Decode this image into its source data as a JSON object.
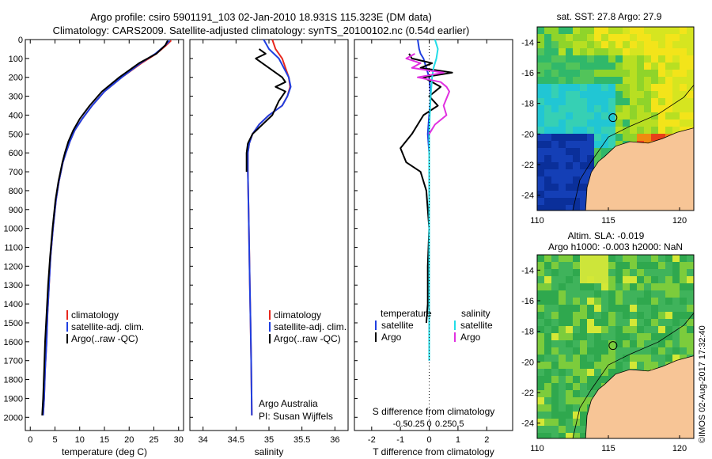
{
  "header": {
    "line1": "Argo profile: csiro 5901191_103 02-Jan-2010 18.931S 115.323E (DM data)",
    "line2": "Climatology: CARS2009. Satellite-adjusted climatology: synTS_20100102.nc (0.54d earlier)"
  },
  "credit": "©IMOS 02-Aug-2017 17:32:40",
  "colors": {
    "climatology": "#e8281e",
    "satellite": "#1f3fe0",
    "argo": "#000000",
    "salinity_satellite": "#22dde8",
    "salinity_argo": "#e030e0",
    "land": "#f7c596"
  },
  "chart_data": [
    {
      "id": "temperature",
      "type": "line",
      "xlabel": "temperature (deg C)",
      "xlim": [
        -1,
        31
      ],
      "ylim": [
        2070,
        0
      ],
      "xticks": [
        "0",
        "5",
        "10",
        "15",
        "20",
        "25",
        "30"
      ],
      "yticks": [
        "0",
        "100",
        "200",
        "300",
        "400",
        "500",
        "600",
        "700",
        "800",
        "900",
        "1000",
        "1100",
        "1200",
        "1300",
        "1400",
        "1500",
        "1600",
        "1700",
        "1800",
        "1900",
        "2000"
      ],
      "legend": [
        "climatology",
        "satellite-adj. clim.",
        "Argo(..raw -QC)"
      ],
      "series": [
        {
          "name": "climatology",
          "x": [
            28.5,
            27.5,
            25.5,
            22.5,
            18.5,
            15,
            12.5,
            10.5,
            9,
            8,
            7.2,
            6.6,
            5.8,
            5.2,
            4.6,
            4.1,
            3.8,
            3.5,
            3.3,
            3.0,
            2.8,
            2.6
          ],
          "y": [
            5,
            30,
            75,
            125,
            200,
            275,
            350,
            420,
            480,
            540,
            600,
            650,
            750,
            850,
            1000,
            1150,
            1300,
            1450,
            1600,
            1750,
            1900,
            1990
          ]
        },
        {
          "name": "satellite-adj. clim.",
          "x": [
            28.2,
            27.3,
            25.3,
            22.3,
            18.5,
            15,
            12.5,
            10.5,
            9,
            8,
            7.2,
            6.6,
            5.8,
            5.2,
            4.6,
            4.1,
            3.8,
            3.5,
            3.3,
            3.0,
            2.8,
            2.6
          ],
          "y": [
            5,
            30,
            75,
            125,
            200,
            275,
            350,
            420,
            480,
            540,
            600,
            650,
            750,
            850,
            1000,
            1150,
            1300,
            1450,
            1600,
            1750,
            1900,
            1990
          ]
        },
        {
          "name": "Argo(..raw -QC)",
          "x": [
            27.8,
            27.3,
            25.5,
            22,
            18,
            14.5,
            12,
            10,
            8.7,
            7.7,
            7.0,
            6.5,
            5.7,
            5.1,
            4.5,
            4.0,
            3.6,
            3.3,
            3.0,
            2.8,
            2.6,
            2.4
          ],
          "y": [
            5,
            30,
            75,
            125,
            200,
            275,
            350,
            420,
            480,
            540,
            600,
            650,
            750,
            850,
            1000,
            1150,
            1300,
            1450,
            1600,
            1750,
            1900,
            1990
          ]
        }
      ],
      "annotations": []
    },
    {
      "id": "salinity",
      "type": "line",
      "xlabel": "salinity",
      "xlim": [
        33.8,
        36.2
      ],
      "ylim": [
        2070,
        0
      ],
      "xticks": [
        "34",
        "34.5",
        "35",
        "35.5",
        "36"
      ],
      "legend": [
        "climatology",
        "satellite-adj. clim.",
        "Argo(..raw -QC)"
      ],
      "series": [
        {
          "name": "climatology",
          "x": [
            35.05,
            35.1,
            35.2,
            35.3,
            35.32,
            35.28,
            35.2,
            35.0,
            34.85,
            34.75,
            34.7,
            34.68,
            34.68,
            34.69,
            34.7,
            34.71,
            34.72,
            34.73,
            34.74
          ],
          "y": [
            0,
            50,
            100,
            200,
            250,
            300,
            350,
            400,
            450,
            500,
            550,
            600,
            700,
            900,
            1100,
            1300,
            1500,
            1700,
            1990
          ]
        },
        {
          "name": "satellite-adj. clim.",
          "x": [
            34.92,
            35.0,
            35.15,
            35.3,
            35.33,
            35.28,
            35.2,
            35.0,
            34.85,
            34.75,
            34.7,
            34.68,
            34.68,
            34.69,
            34.7,
            34.71,
            34.72,
            34.73,
            34.74
          ],
          "y": [
            0,
            50,
            100,
            200,
            250,
            300,
            350,
            400,
            450,
            500,
            550,
            600,
            700,
            900,
            1100,
            1300,
            1500,
            1700,
            1990
          ]
        },
        {
          "name": "Argo(..raw -QC)",
          "x": [
            34.85,
            34.95,
            34.8,
            35.0,
            35.2,
            35.25,
            35.1,
            35.25,
            35.15,
            35.05,
            34.9,
            34.75,
            34.68,
            34.66,
            34.66,
            34.66
          ],
          "y": [
            50,
            75,
            100,
            150,
            200,
            225,
            250,
            275,
            325,
            400,
            450,
            500,
            550,
            600,
            650,
            700
          ]
        }
      ],
      "annotations": [
        "Argo Australia",
        "PI: Susan Wijffels"
      ]
    },
    {
      "id": "difference",
      "type": "line",
      "xlabel": "T difference from climatology",
      "xlabel2": "S difference from climatology",
      "xlim": [
        -2.6,
        2.9
      ],
      "ylim": [
        2070,
        0
      ],
      "xticks": [
        "-2",
        "-1",
        "0",
        "1",
        "2"
      ],
      "xticks_s": [
        "-0.5",
        "-0.25",
        "0",
        "0.25",
        "0.5"
      ],
      "legend_groups": {
        "temperature": "temperature",
        "salinity": "salinity"
      },
      "legend": [
        "satellite",
        "Argo",
        "satellite",
        "Argo"
      ],
      "series": [
        {
          "name": "temperature satellite",
          "x": [
            -0.4,
            -0.35,
            -0.3,
            -0.2,
            -0.1,
            0.0,
            0.05,
            0.0,
            -0.05,
            0.0,
            0.0,
            0.0,
            0.0,
            0.0,
            0.0
          ],
          "y": [
            0,
            50,
            75,
            100,
            150,
            200,
            300,
            400,
            500,
            600,
            800,
            1000,
            1200,
            1500,
            1700
          ]
        },
        {
          "name": "temperature Argo",
          "x": [
            -0.7,
            -0.6,
            0.1,
            -0.3,
            0.8,
            -0.2,
            0.4,
            0.0,
            0.3,
            -0.2,
            -0.4,
            -0.6,
            -1.0,
            -0.8,
            -0.3,
            -0.1,
            0.0,
            -0.05,
            -0.05,
            -0.1
          ],
          "y": [
            75,
            100,
            125,
            150,
            175,
            200,
            250,
            300,
            350,
            400,
            450,
            500,
            575,
            650,
            700,
            800,
            1000,
            1200,
            1400,
            1500
          ]
        },
        {
          "name": "salinity satellite",
          "x": [
            0.2,
            0.3,
            0.25,
            0.15,
            0.1,
            0.05,
            0.02,
            0.0,
            0.0,
            0.0,
            0.0
          ],
          "y": [
            0,
            50,
            100,
            150,
            200,
            300,
            400,
            500,
            700,
            1000,
            1700
          ]
        },
        {
          "name": "salinity Argo",
          "x": [
            -0.5,
            -0.8,
            -0.3,
            -0.6,
            0.5,
            -0.4,
            0.4,
            0.6,
            0.7,
            0.5,
            0.6,
            0.2,
            0.0
          ],
          "y": [
            75,
            100,
            125,
            150,
            175,
            200,
            225,
            250,
            275,
            350,
            400,
            450,
            500
          ]
        }
      ],
      "annotations": []
    },
    {
      "id": "sst-map",
      "type": "heatmap",
      "title": "sat. SST: 27.8 Argo: 27.9",
      "xlim": [
        110,
        121
      ],
      "ylim": [
        -25,
        -13
      ],
      "xticks": [
        "110",
        "115",
        "120"
      ],
      "yticks": [
        "-14",
        "-16",
        "-18",
        "-20",
        "-22",
        "-24"
      ],
      "marker": {
        "lon": 115.323,
        "lat": -18.931
      }
    },
    {
      "id": "sla-map",
      "type": "heatmap",
      "title": "Altim. SLA: -0.019",
      "subtitle": "Argo h1000: -0.003 h2000: NaN",
      "xlim": [
        110,
        121
      ],
      "ylim": [
        -25,
        -13
      ],
      "xticks": [
        "110",
        "115",
        "120"
      ],
      "yticks": [
        "-14",
        "-16",
        "-18",
        "-20",
        "-22",
        "-24"
      ],
      "marker": {
        "lon": 115.323,
        "lat": -18.931
      }
    }
  ]
}
